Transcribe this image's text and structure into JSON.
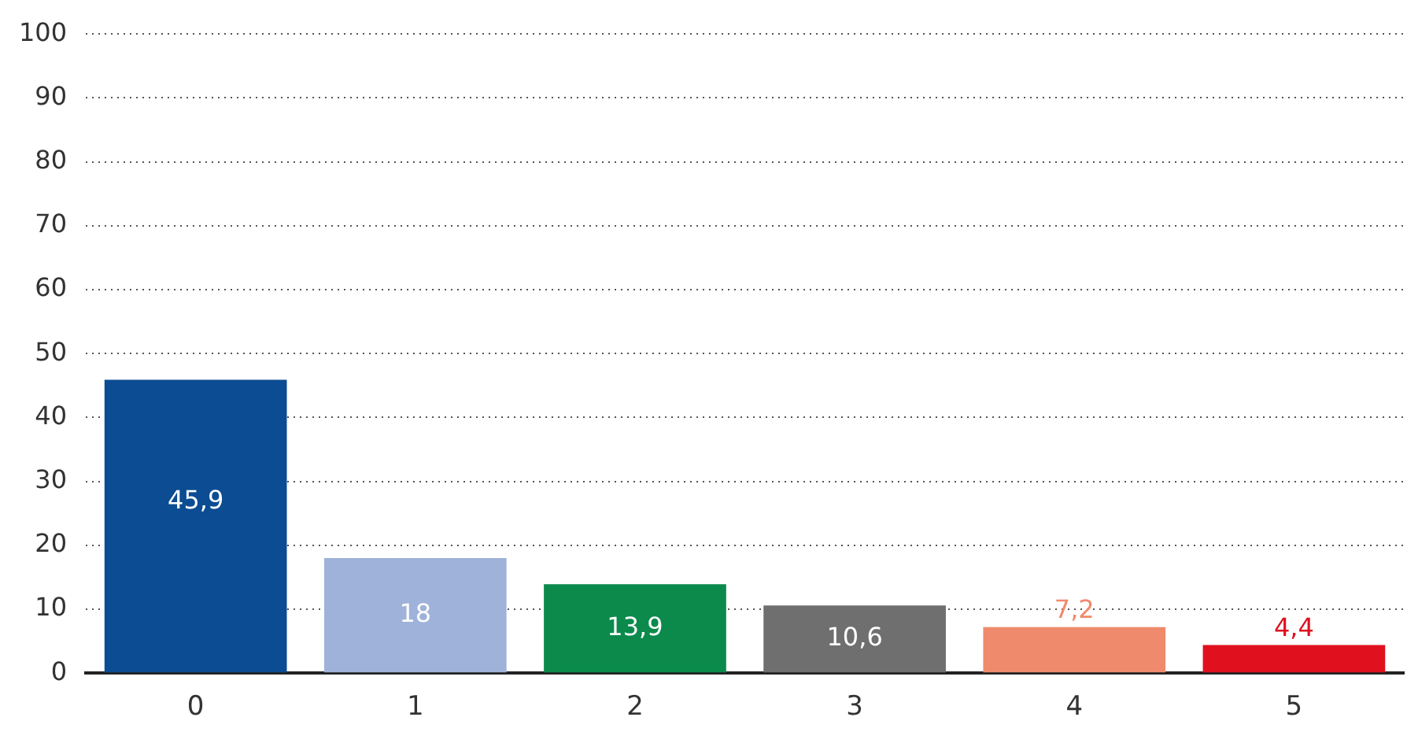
{
  "chart_data": {
    "type": "bar",
    "categories": [
      "0",
      "1",
      "2",
      "3",
      "4",
      "5"
    ],
    "values": [
      45.9,
      18,
      13.9,
      10.6,
      7.2,
      4.4
    ],
    "colors": [
      "#0b4c92",
      "#9fb2d9",
      "#0b8a4b",
      "#6f6f6f",
      "#f08a6c",
      "#e0101e"
    ],
    "value_labels": [
      "45,9",
      "18",
      "13,9",
      "10,6",
      "7,2",
      "4,4"
    ],
    "ylim": [
      0,
      100
    ],
    "yticks": [
      0,
      10,
      20,
      30,
      40,
      50,
      60,
      70,
      80,
      90,
      100
    ],
    "grid": "y",
    "legend": false
  }
}
